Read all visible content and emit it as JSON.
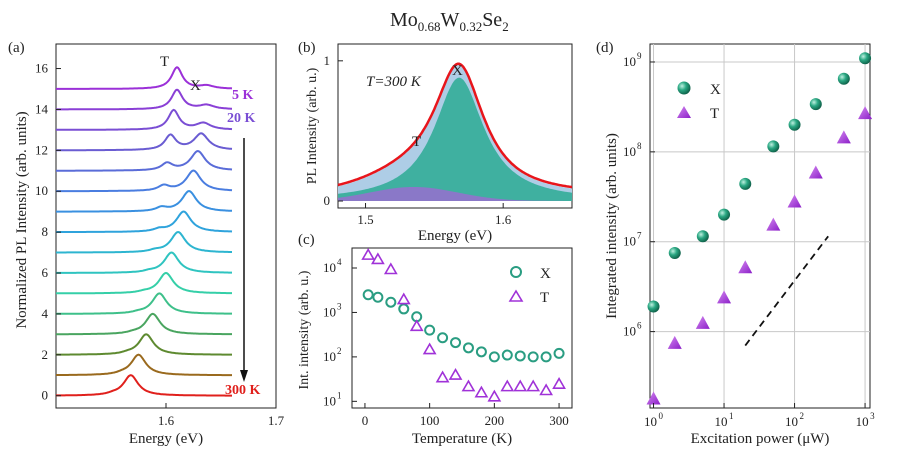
{
  "figure": {
    "title_main": "Mo",
    "title_sub1": "0.68",
    "title_mid": "W",
    "title_sub2": "0.32",
    "title_end": "Se",
    "title_sub3": "2"
  },
  "chart_data": [
    {
      "panel": "(a)",
      "type": "line",
      "xlabel": "Energy (eV)",
      "ylabel": "Normalized PL Intensity (arb. units)",
      "xlim": [
        1.5,
        1.7
      ],
      "ylim": [
        -0.6,
        17.2
      ],
      "x_ticks": [
        "1.6",
        "1.7"
      ],
      "y_ticks": [
        "0",
        "2",
        "4",
        "6",
        "8",
        "10",
        "12",
        "14",
        "16"
      ],
      "annotations": [
        "T",
        "X",
        "5 K",
        "20 K",
        "300 K"
      ],
      "series": [
        {
          "offset": 15,
          "peak_X": 1.637,
          "amp_X": 0.15,
          "peak_T": 1.61,
          "amp_T": 1.05,
          "color": "#9b30d8"
        },
        {
          "offset": 14,
          "peak_X": 1.637,
          "amp_X": 0.2,
          "peak_T": 1.61,
          "amp_T": 0.95,
          "color": "#8a3fd6"
        },
        {
          "offset": 13,
          "peak_X": 1.634,
          "amp_X": 0.32,
          "peak_T": 1.607,
          "amp_T": 0.95,
          "color": "#7a4ed4"
        },
        {
          "offset": 12,
          "peak_X": 1.632,
          "amp_X": 0.8,
          "peak_T": 1.604,
          "amp_T": 0.72,
          "color": "#6a5cd2"
        },
        {
          "offset": 11,
          "peak_X": 1.629,
          "amp_X": 0.95,
          "peak_T": 1.601,
          "amp_T": 0.35,
          "color": "#5a6cd8"
        },
        {
          "offset": 10,
          "peak_X": 1.625,
          "amp_X": 1.0,
          "peak_T": 1.598,
          "amp_T": 0.25,
          "color": "#4a7de0"
        },
        {
          "offset": 9,
          "peak_X": 1.621,
          "amp_X": 1.0,
          "peak_T": 1.596,
          "amp_T": 0.18,
          "color": "#3a90e0"
        },
        {
          "offset": 8,
          "peak_X": 1.616,
          "amp_X": 1.0,
          "peak_T": 1.594,
          "amp_T": 0.12,
          "color": "#2fa3dc"
        },
        {
          "offset": 7,
          "peak_X": 1.611,
          "amp_X": 1.0,
          "peak_T": 1.59,
          "amp_T": 0.08,
          "color": "#2db5d0"
        },
        {
          "offset": 6,
          "peak_X": 1.605,
          "amp_X": 1.0,
          "peak_T": 1.585,
          "amp_T": 0.06,
          "color": "#2fc4c0"
        },
        {
          "offset": 5,
          "peak_X": 1.6,
          "amp_X": 1.0,
          "peak_T": 1.58,
          "amp_T": 0.05,
          "color": "#35cfa8"
        },
        {
          "offset": 4,
          "peak_X": 1.594,
          "amp_X": 1.0,
          "peak_T": 1.575,
          "amp_T": 0.05,
          "color": "#3ec08a"
        },
        {
          "offset": 3,
          "peak_X": 1.588,
          "amp_X": 1.0,
          "peak_T": 1.57,
          "amp_T": 0.05,
          "color": "#4aa560"
        },
        {
          "offset": 2,
          "peak_X": 1.582,
          "amp_X": 1.0,
          "peak_T": 1.565,
          "amp_T": 0.05,
          "color": "#5e8a30"
        },
        {
          "offset": 1,
          "peak_X": 1.575,
          "amp_X": 1.0,
          "peak_T": 1.56,
          "amp_T": 0.05,
          "color": "#9a6a1e"
        },
        {
          "offset": 0,
          "peak_X": 1.568,
          "amp_X": 1.0,
          "peak_T": 1.552,
          "amp_T": 0.05,
          "color": "#e0201c"
        }
      ]
    },
    {
      "panel": "(b)",
      "type": "area",
      "xlabel": "Energy (eV)",
      "ylabel": "PL Intensity (arb. u.)",
      "xlim": [
        1.48,
        1.65
      ],
      "ylim": [
        -0.05,
        1.12
      ],
      "x_ticks": [
        "1.5",
        "1.6"
      ],
      "y_ticks": [
        "0",
        "1"
      ],
      "annotation_temp": "T=300 K",
      "labels": [
        "X",
        "T"
      ],
      "peaks": {
        "X": {
          "center": 1.568,
          "amp": 0.88,
          "color": "#3fb0a0"
        },
        "T": {
          "center": 1.535,
          "amp": 0.1,
          "color": "#8a78c8"
        }
      },
      "colors": {
        "total": "#e8151b",
        "envelope_fill": "#aecde6"
      }
    },
    {
      "panel": "(c)",
      "type": "scatter",
      "xlabel": "Temperature (K)",
      "ylabel": "Int. intensity (arb. u.)",
      "xlim": [
        -20,
        320
      ],
      "ylim_log10": [
        0.85,
        4.45
      ],
      "x_ticks": [
        "0",
        "100",
        "200",
        "300"
      ],
      "y_ticks": [
        "10",
        "10",
        "10",
        "10"
      ],
      "y_tick_exp": [
        "1",
        "2",
        "3",
        "4"
      ],
      "series": [
        {
          "name": "X",
          "marker": "circle",
          "color": "#2a9d82",
          "x": [
            5,
            20,
            40,
            60,
            80,
            100,
            120,
            140,
            160,
            180,
            200,
            220,
            240,
            260,
            280,
            300
          ],
          "y": [
            2500,
            2200,
            1700,
            1200,
            800,
            400,
            270,
            210,
            160,
            130,
            100,
            110,
            105,
            100,
            100,
            120
          ]
        },
        {
          "name": "T",
          "marker": "triangle",
          "color": "#a032d8",
          "x": [
            5,
            20,
            40,
            60,
            80,
            100,
            120,
            140,
            160,
            180,
            200,
            220,
            240,
            260,
            280,
            300
          ],
          "y": [
            20000,
            16000,
            9500,
            2000,
            500,
            150,
            35,
            40,
            22,
            16,
            13,
            22,
            22,
            22,
            18,
            25
          ]
        }
      ]
    },
    {
      "panel": "(d)",
      "type": "scatter",
      "xlabel": "Excitation power (μW)",
      "ylabel": "Integrated intensity (arb. units)",
      "xlim_log10": [
        -0.05,
        3.07
      ],
      "ylim_log10": [
        5.15,
        9.2
      ],
      "x_ticks": [
        "10",
        "10",
        "10",
        "10"
      ],
      "x_tick_exp": [
        "0",
        "1",
        "2",
        "3"
      ],
      "y_ticks": [
        "10",
        "10",
        "10",
        "10"
      ],
      "y_tick_exp": [
        "6",
        "7",
        "8",
        "9"
      ],
      "series": [
        {
          "name": "X",
          "marker": "sphere",
          "color": "#1f9e7a",
          "x": [
            1,
            2,
            5,
            10,
            20,
            50,
            100,
            200,
            500,
            1000
          ],
          "y": [
            1900000.0,
            7500000.0,
            11500000.0,
            20000000.0,
            44000000.0,
            115000000.0,
            200000000.0,
            340000000.0,
            650000000.0,
            1100000000.0
          ]
        },
        {
          "name": "T",
          "marker": "triangle",
          "color": "#9b30d8",
          "x": [
            1,
            2,
            5,
            10,
            20,
            50,
            100,
            200,
            500,
            1000
          ],
          "y": [
            180000.0,
            750000.0,
            1250000.0,
            2400000.0,
            5200000.0,
            15500000.0,
            28000000.0,
            59000000.0,
            145000000.0,
            270000000.0
          ]
        }
      ],
      "guide_line": {
        "x": [
          20,
          300
        ],
        "y": [
          700000.0,
          11500000.0
        ],
        "style": "dashed"
      }
    }
  ]
}
